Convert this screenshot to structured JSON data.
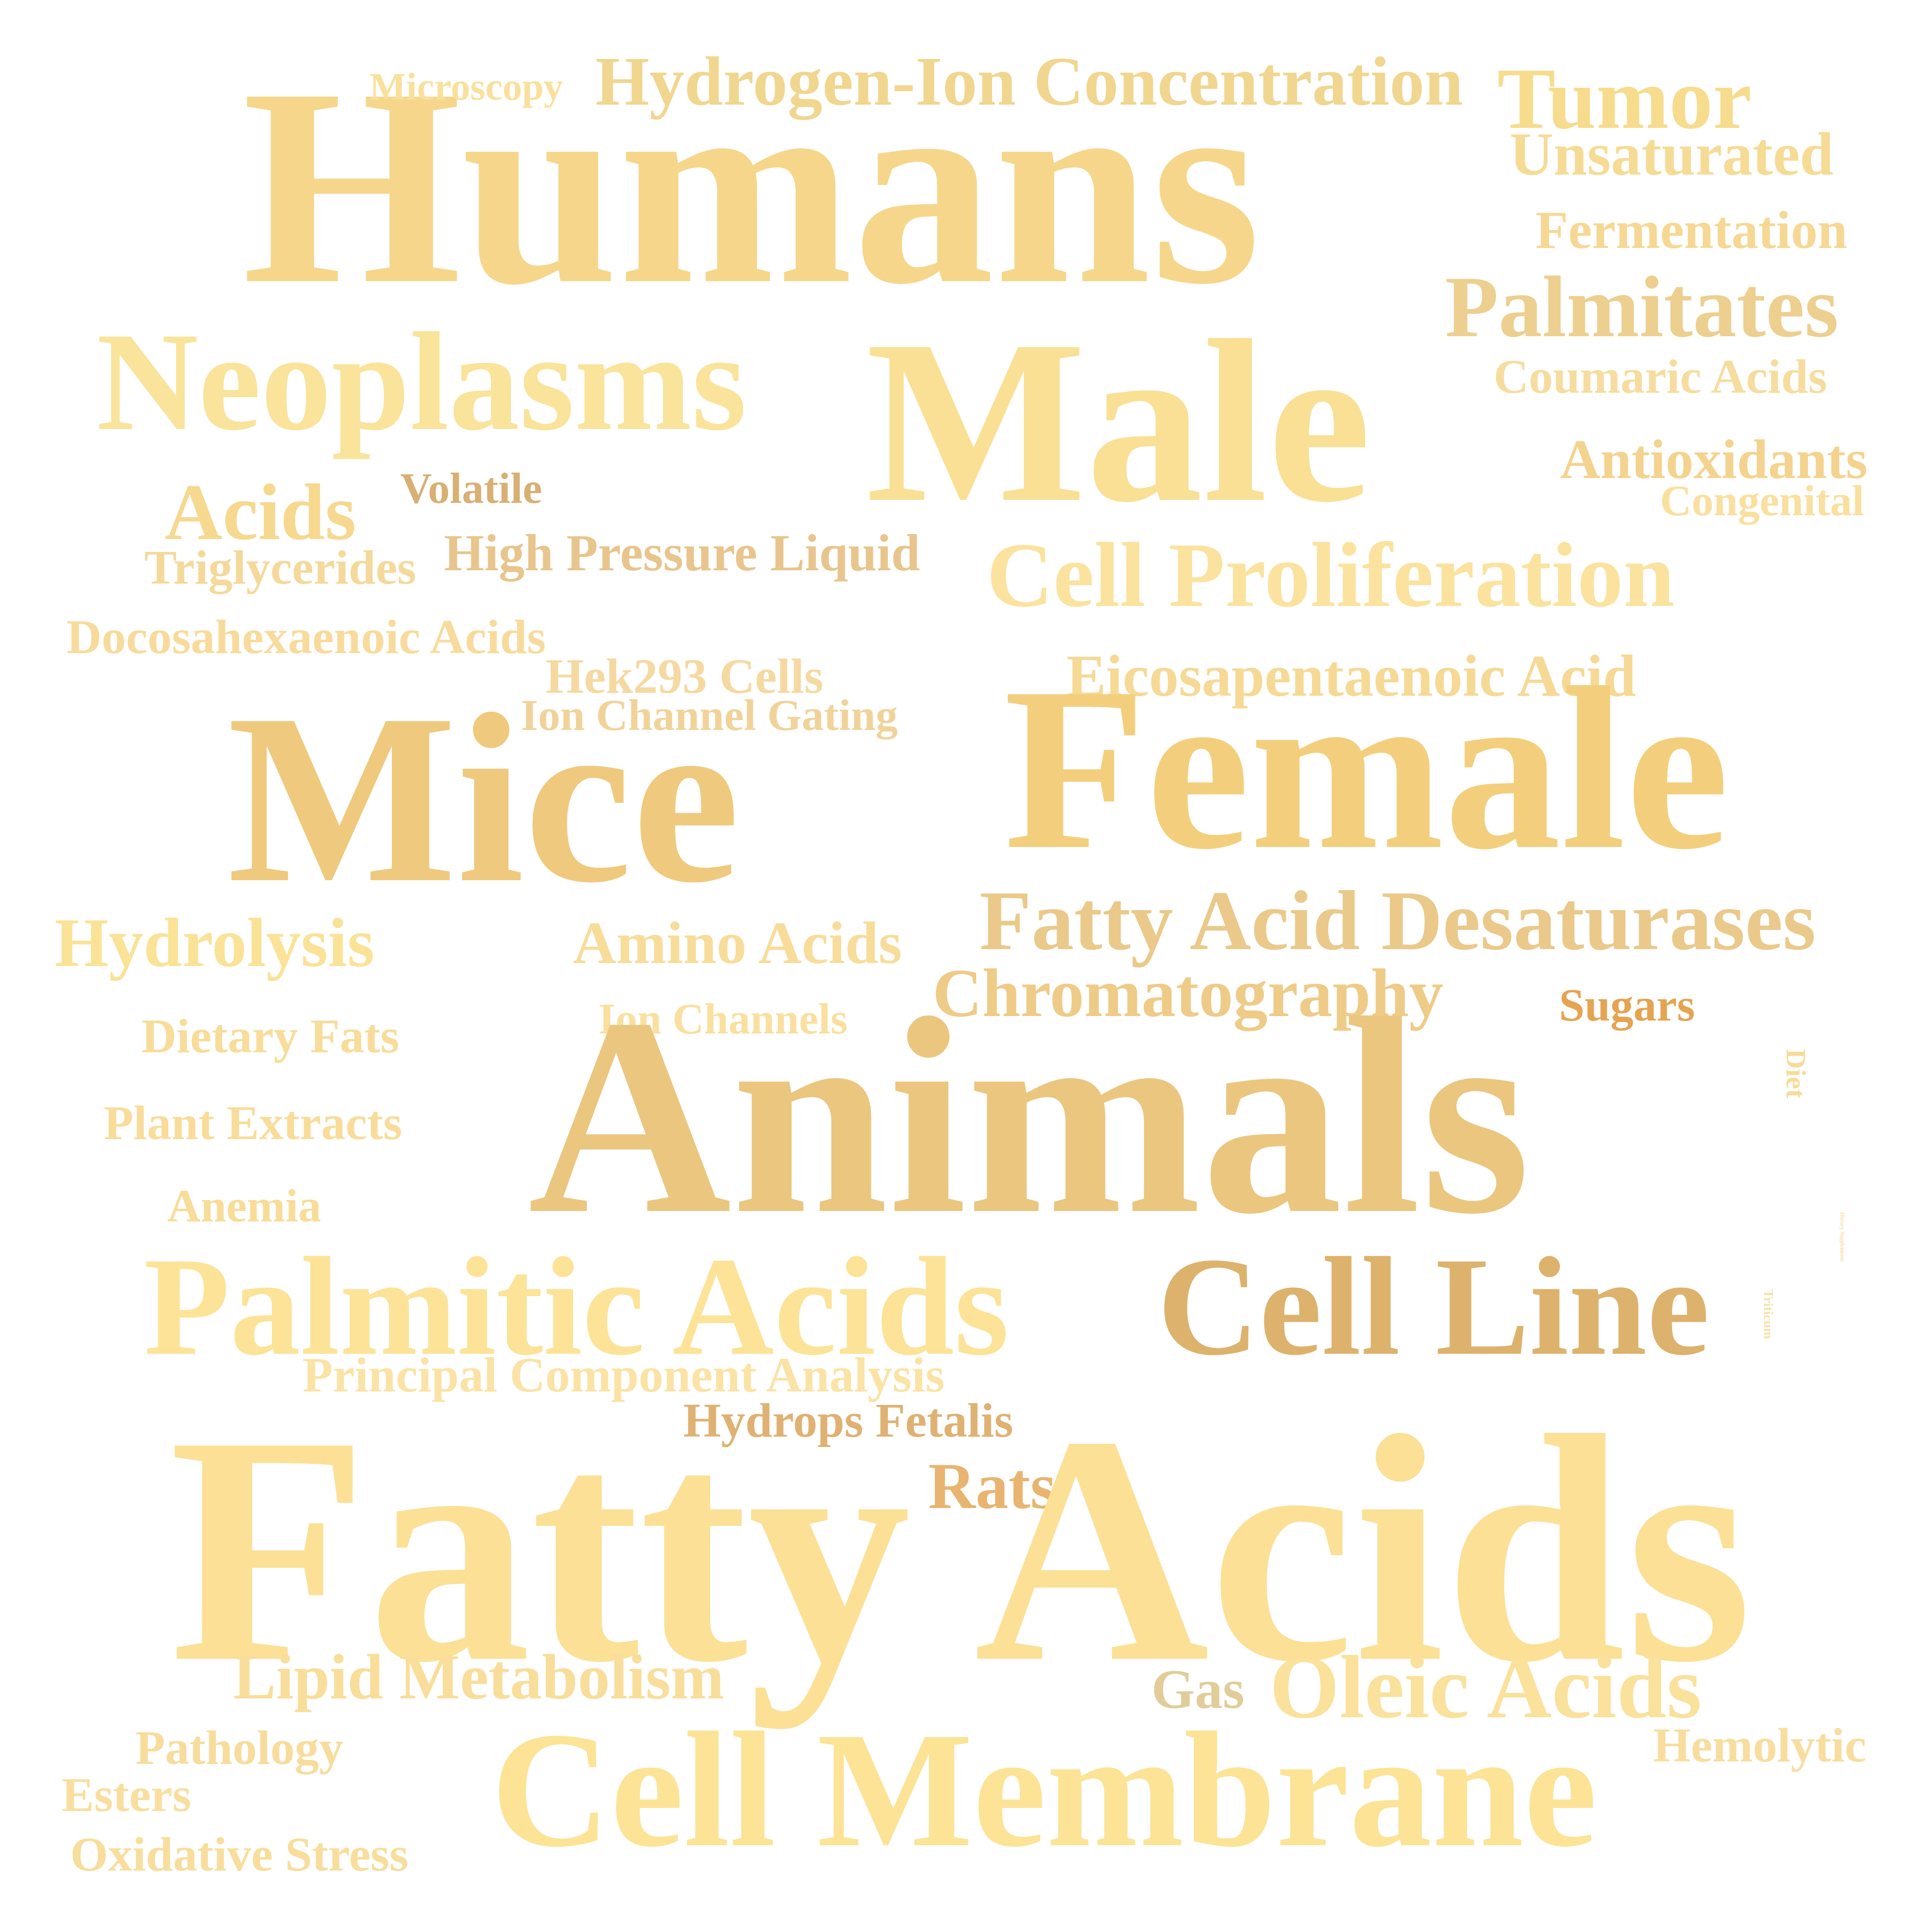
{
  "words": [
    {
      "id": "humans",
      "text": "Humans",
      "color": "#F6D68A"
    },
    {
      "id": "microscopy",
      "text": "Microscopy",
      "color": "#F9E09C"
    },
    {
      "id": "hydrogen-ion",
      "text": "Hydrogen-Ion Concentration",
      "color": "#F1D690"
    },
    {
      "id": "tumor",
      "text": "Tumor",
      "color": "#F7DC8E"
    },
    {
      "id": "unsaturated",
      "text": "Unsaturated",
      "color": "#F6DB95"
    },
    {
      "id": "fermentation",
      "text": "Fermentation",
      "color": "#F6D894"
    },
    {
      "id": "palmitates",
      "text": "Palmitates",
      "color": "#EDCF8F"
    },
    {
      "id": "coumaric",
      "text": "Coumaric Acids",
      "color": "#F6DD9F"
    },
    {
      "id": "neoplasms",
      "text": "Neoplasms",
      "color": "#FAE39A"
    },
    {
      "id": "male",
      "text": "Male",
      "color": "#F9E095"
    },
    {
      "id": "antioxidants",
      "text": "Antioxidants",
      "color": "#F4D38F"
    },
    {
      "id": "congenital",
      "text": "Congenital",
      "color": "#FADF9E"
    },
    {
      "id": "acids",
      "text": "Acids",
      "color": "#F6D88F"
    },
    {
      "id": "volatile",
      "text": "Volatile",
      "color": "#D8B074"
    },
    {
      "id": "hplc",
      "text": "High Pressure Liquid",
      "color": "#E8C58D"
    },
    {
      "id": "triglycerides",
      "text": "Triglycerides",
      "color": "#F5D99B"
    },
    {
      "id": "cell-prolif",
      "text": "Cell Proliferation",
      "color": "#FBE39F"
    },
    {
      "id": "dha",
      "text": "Docosahexaenoic Acids",
      "color": "#F8DB9C"
    },
    {
      "id": "hek293",
      "text": "Hek293 Cells",
      "color": "#F6D8A1"
    },
    {
      "id": "ion-gating",
      "text": "Ion Channel Gating",
      "color": "#F1D39A"
    },
    {
      "id": "epa",
      "text": "Eicosapentaenoic Acid",
      "color": "#F6D995"
    },
    {
      "id": "mice",
      "text": "Mice",
      "color": "#EFC97D"
    },
    {
      "id": "female",
      "text": "Female",
      "color": "#F3CF7D"
    },
    {
      "id": "fads",
      "text": "Fatty Acid Desaturases",
      "color": "#EAC98A"
    },
    {
      "id": "hydrolysis",
      "text": "Hydrolysis",
      "color": "#FAE297"
    },
    {
      "id": "amino",
      "text": "Amino Acids",
      "color": "#F8DC9A"
    },
    {
      "id": "chromatography",
      "text": "Chromatography",
      "color": "#EFCB88"
    },
    {
      "id": "sugars",
      "text": "Sugars",
      "color": "#E5A452"
    },
    {
      "id": "ion-channels",
      "text": "Ion Channels",
      "color": "#FADF9F"
    },
    {
      "id": "dietary-fats",
      "text": "Dietary Fats",
      "color": "#F8DC9A"
    },
    {
      "id": "animals",
      "text": "Animals",
      "color": "#EBC67F"
    },
    {
      "id": "diet",
      "text": "Diet",
      "color": "#F7DB9A"
    },
    {
      "id": "plant-extracts",
      "text": "Plant Extracts",
      "color": "#F9DC9A"
    },
    {
      "id": "dietary-supplements",
      "text": "Dietary Supplements",
      "color": "#F6DCA3"
    },
    {
      "id": "anemia",
      "text": "Anemia",
      "color": "#F9DC97"
    },
    {
      "id": "triticum",
      "text": "Triticum",
      "color": "#F8E0A6"
    },
    {
      "id": "palmitic",
      "text": "Palmitic Acids",
      "color": "#FDE397"
    },
    {
      "id": "cell-line",
      "text": "Cell Line",
      "color": "#DDB26C"
    },
    {
      "id": "pca",
      "text": "Principal Component Analysis",
      "color": "#FBE3A5"
    },
    {
      "id": "hydrops",
      "text": "Hydrops Fetalis",
      "color": "#DFB172"
    },
    {
      "id": "rats",
      "text": "Rats",
      "color": "#E8B470"
    },
    {
      "id": "fatty-acids",
      "text": "Fatty Acids",
      "color": "#FBE096"
    },
    {
      "id": "lipid-met",
      "text": "Lipid Metabolism",
      "color": "#F9DD9A"
    },
    {
      "id": "gas",
      "text": "Gas",
      "color": "#E1CD9A"
    },
    {
      "id": "oleic",
      "text": "Oleic Acids",
      "color": "#FAE19C"
    },
    {
      "id": "pathology",
      "text": "Pathology",
      "color": "#F8DC9C"
    },
    {
      "id": "hemolytic",
      "text": "Hemolytic",
      "color": "#F8DD9F"
    },
    {
      "id": "cell-membrane",
      "text": "Cell Membrane",
      "color": "#FCE396"
    },
    {
      "id": "esters",
      "text": "Esters",
      "color": "#F9DE9E"
    },
    {
      "id": "oxidative",
      "text": "Oxidative Stress",
      "color": "#F8DD9C"
    }
  ]
}
